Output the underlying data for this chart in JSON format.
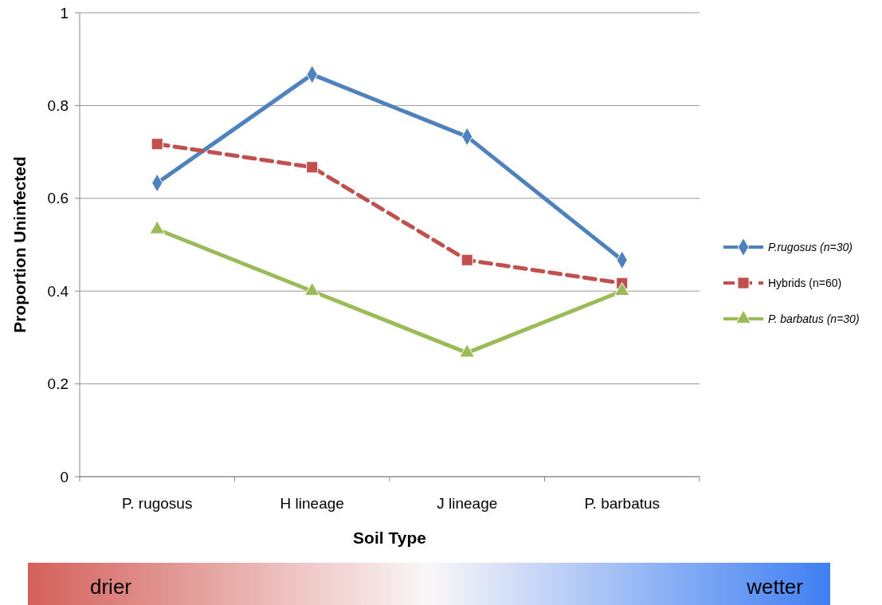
{
  "chart_data": {
    "type": "line",
    "xlabel": "Soil Type",
    "ylabel": "Proportion Uninfected",
    "categories": [
      "P. rugosus",
      "H lineage",
      "J lineage",
      "P. barbatus"
    ],
    "series": [
      {
        "name": "P.rugosus (n=30)",
        "color": "#4f81bd",
        "values": [
          0.633,
          0.867,
          0.733,
          0.467
        ],
        "marker": "diamond",
        "line_style": "solid"
      },
      {
        "name": "Hybrids (n=60)",
        "color": "#c0504d",
        "values": [
          0.717,
          0.667,
          0.467,
          0.417
        ],
        "marker": "square",
        "line_style": "dashed"
      },
      {
        "name": "P. barbatus (n=30)",
        "color": "#9bbb59",
        "values": [
          0.533,
          0.4,
          0.267,
          0.4
        ],
        "marker": "triangle",
        "line_style": "solid"
      }
    ],
    "ylim": [
      0,
      1
    ],
    "yticks": [
      0,
      0.2,
      0.4,
      0.6,
      0.8,
      1
    ],
    "grid": "y",
    "legend": "right",
    "annotations": [
      "drier",
      "wetter"
    ]
  }
}
